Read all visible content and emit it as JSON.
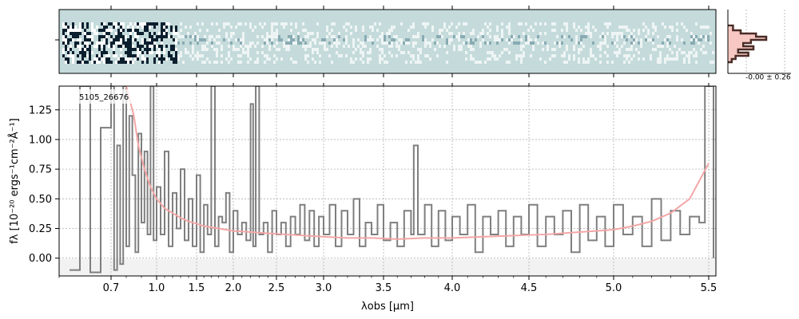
{
  "chart_data": [
    {
      "type": "heatmap",
      "panel": "2d-spectrum",
      "x_tick_labels": [
        "0.7",
        "1.0",
        "1.5",
        "2.0",
        "2.5",
        "3.0",
        "3.5",
        "4.0",
        "4.5",
        "5.0",
        "5.5"
      ],
      "colors": {
        "background": "#c5dbdb",
        "dark": "#0b1f2e",
        "mid": "#6f97a3",
        "light": "#ffffff"
      }
    },
    {
      "type": "line",
      "panel": "1d-spectrum",
      "annotation": "5105_26676",
      "xlabel": "λobs [μm]",
      "ylabel": "fλ [10⁻²⁰ ergs⁻¹cm⁻²Å⁻¹]",
      "ylim": [
        -0.15,
        1.45
      ],
      "yticks": [
        0.0,
        0.25,
        0.5,
        0.75,
        1.0,
        1.25
      ],
      "ytick_labels": [
        "0.00",
        "0.25",
        "0.50",
        "0.75",
        "1.00",
        "1.25"
      ],
      "xlim": [
        0.6,
        5.53
      ],
      "xticks": [
        0.7,
        1.0,
        1.5,
        2.0,
        2.5,
        3.0,
        3.5,
        4.0,
        4.5,
        5.0,
        5.5
      ],
      "xtick_labels": [
        "0.7",
        "1.0",
        "1.5",
        "2.0",
        "2.5",
        "3.0",
        "3.5",
        "4.0",
        "4.5",
        "5.0",
        "5.5"
      ],
      "grid": true,
      "series": [
        {
          "role": "flux",
          "color": "#7f7f7f",
          "points": [
            [
              0.62,
              -0.1
            ],
            [
              0.64,
              1.45
            ],
            [
              0.66,
              -0.12
            ],
            [
              0.68,
              1.1
            ],
            [
              0.7,
              1.45
            ],
            [
              0.72,
              -0.1
            ],
            [
              0.74,
              0.95
            ],
            [
              0.76,
              -0.05
            ],
            [
              0.78,
              1.45
            ],
            [
              0.8,
              0.1
            ],
            [
              0.82,
              1.2
            ],
            [
              0.84,
              0.7
            ],
            [
              0.86,
              0.05
            ],
            [
              0.88,
              1.05
            ],
            [
              0.9,
              0.3
            ],
            [
              0.92,
              0.9
            ],
            [
              0.94,
              0.2
            ],
            [
              0.96,
              1.45
            ],
            [
              0.98,
              0.15
            ],
            [
              1.0,
              0.6
            ],
            [
              1.05,
              0.2
            ],
            [
              1.1,
              0.9
            ],
            [
              1.15,
              0.1
            ],
            [
              1.2,
              0.55
            ],
            [
              1.25,
              0.25
            ],
            [
              1.3,
              0.75
            ],
            [
              1.35,
              0.15
            ],
            [
              1.4,
              0.5
            ],
            [
              1.45,
              0.1
            ],
            [
              1.5,
              0.7
            ],
            [
              1.55,
              0.05
            ],
            [
              1.6,
              0.45
            ],
            [
              1.65,
              0.2
            ],
            [
              1.7,
              1.45
            ],
            [
              1.75,
              0.1
            ],
            [
              1.8,
              0.35
            ],
            [
              1.85,
              0.3
            ],
            [
              1.9,
              0.55
            ],
            [
              1.95,
              0.05
            ],
            [
              2.0,
              0.4
            ],
            [
              2.05,
              0.2
            ],
            [
              2.1,
              0.3
            ],
            [
              2.15,
              0.15
            ],
            [
              2.2,
              1.3
            ],
            [
              2.23,
              0.1
            ],
            [
              2.26,
              1.45
            ],
            [
              2.3,
              0.2
            ],
            [
              2.35,
              0.3
            ],
            [
              2.4,
              0.05
            ],
            [
              2.45,
              0.4
            ],
            [
              2.5,
              0.2
            ],
            [
              2.55,
              0.3
            ],
            [
              2.6,
              0.1
            ],
            [
              2.65,
              0.35
            ],
            [
              2.7,
              0.2
            ],
            [
              2.75,
              0.45
            ],
            [
              2.8,
              0.15
            ],
            [
              2.85,
              0.4
            ],
            [
              2.9,
              0.1
            ],
            [
              2.95,
              0.35
            ],
            [
              3.0,
              0.2
            ],
            [
              3.05,
              0.45
            ],
            [
              3.1,
              0.1
            ],
            [
              3.15,
              0.4
            ],
            [
              3.2,
              0.2
            ],
            [
              3.25,
              0.5
            ],
            [
              3.3,
              0.1
            ],
            [
              3.35,
              0.3
            ],
            [
              3.4,
              0.2
            ],
            [
              3.45,
              0.45
            ],
            [
              3.5,
              0.15
            ],
            [
              3.55,
              0.3
            ],
            [
              3.6,
              0.1
            ],
            [
              3.65,
              0.4
            ],
            [
              3.7,
              0.2
            ],
            [
              3.72,
              0.95
            ],
            [
              3.75,
              0.2
            ],
            [
              3.8,
              0.45
            ],
            [
              3.85,
              0.1
            ],
            [
              3.9,
              0.4
            ],
            [
              3.95,
              0.15
            ],
            [
              4.0,
              0.35
            ],
            [
              4.05,
              0.2
            ],
            [
              4.1,
              0.45
            ],
            [
              4.15,
              0.05
            ],
            [
              4.2,
              0.35
            ],
            [
              4.25,
              0.2
            ],
            [
              4.3,
              0.4
            ],
            [
              4.35,
              0.1
            ],
            [
              4.4,
              0.35
            ],
            [
              4.45,
              0.2
            ],
            [
              4.5,
              0.45
            ],
            [
              4.55,
              0.1
            ],
            [
              4.6,
              0.35
            ],
            [
              4.65,
              0.2
            ],
            [
              4.7,
              0.4
            ],
            [
              4.75,
              0.05
            ],
            [
              4.8,
              0.45
            ],
            [
              4.85,
              0.15
            ],
            [
              4.9,
              0.35
            ],
            [
              4.95,
              0.1
            ],
            [
              5.0,
              0.45
            ],
            [
              5.05,
              0.2
            ],
            [
              5.1,
              0.35
            ],
            [
              5.15,
              0.1
            ],
            [
              5.2,
              0.5
            ],
            [
              5.25,
              0.15
            ],
            [
              5.3,
              0.4
            ],
            [
              5.35,
              0.2
            ],
            [
              5.4,
              0.35
            ],
            [
              5.45,
              0.3
            ],
            [
              5.48,
              1.45
            ],
            [
              5.52,
              0.0
            ]
          ]
        },
        {
          "role": "model",
          "color": "#f4a6a6",
          "points": [
            [
              0.8,
              1.45
            ],
            [
              0.85,
              1.2
            ],
            [
              0.88,
              0.95
            ],
            [
              0.92,
              0.75
            ],
            [
              0.96,
              0.6
            ],
            [
              1.0,
              0.5
            ],
            [
              1.1,
              0.42
            ],
            [
              1.2,
              0.38
            ],
            [
              1.3,
              0.34
            ],
            [
              1.4,
              0.31
            ],
            [
              1.5,
              0.29
            ],
            [
              1.6,
              0.27
            ],
            [
              1.7,
              0.26
            ],
            [
              1.8,
              0.25
            ],
            [
              1.9,
              0.24
            ],
            [
              2.0,
              0.23
            ],
            [
              2.2,
              0.22
            ],
            [
              2.4,
              0.21
            ],
            [
              2.6,
              0.2
            ],
            [
              2.8,
              0.19
            ],
            [
              3.0,
              0.18
            ],
            [
              3.2,
              0.17
            ],
            [
              3.4,
              0.17
            ],
            [
              3.6,
              0.16
            ],
            [
              3.8,
              0.17
            ],
            [
              4.0,
              0.17
            ],
            [
              4.2,
              0.18
            ],
            [
              4.4,
              0.19
            ],
            [
              4.6,
              0.2
            ],
            [
              4.8,
              0.22
            ],
            [
              5.0,
              0.24
            ],
            [
              5.1,
              0.27
            ],
            [
              5.2,
              0.31
            ],
            [
              5.3,
              0.38
            ],
            [
              5.4,
              0.5
            ],
            [
              5.45,
              0.65
            ],
            [
              5.5,
              0.8
            ]
          ]
        }
      ]
    },
    {
      "type": "bar",
      "panel": "residual-histogram",
      "annotation": "-0.00 ± 0.26",
      "colors": {
        "fill": "#f7c8c3",
        "outline": "#4a2c26"
      }
    }
  ]
}
